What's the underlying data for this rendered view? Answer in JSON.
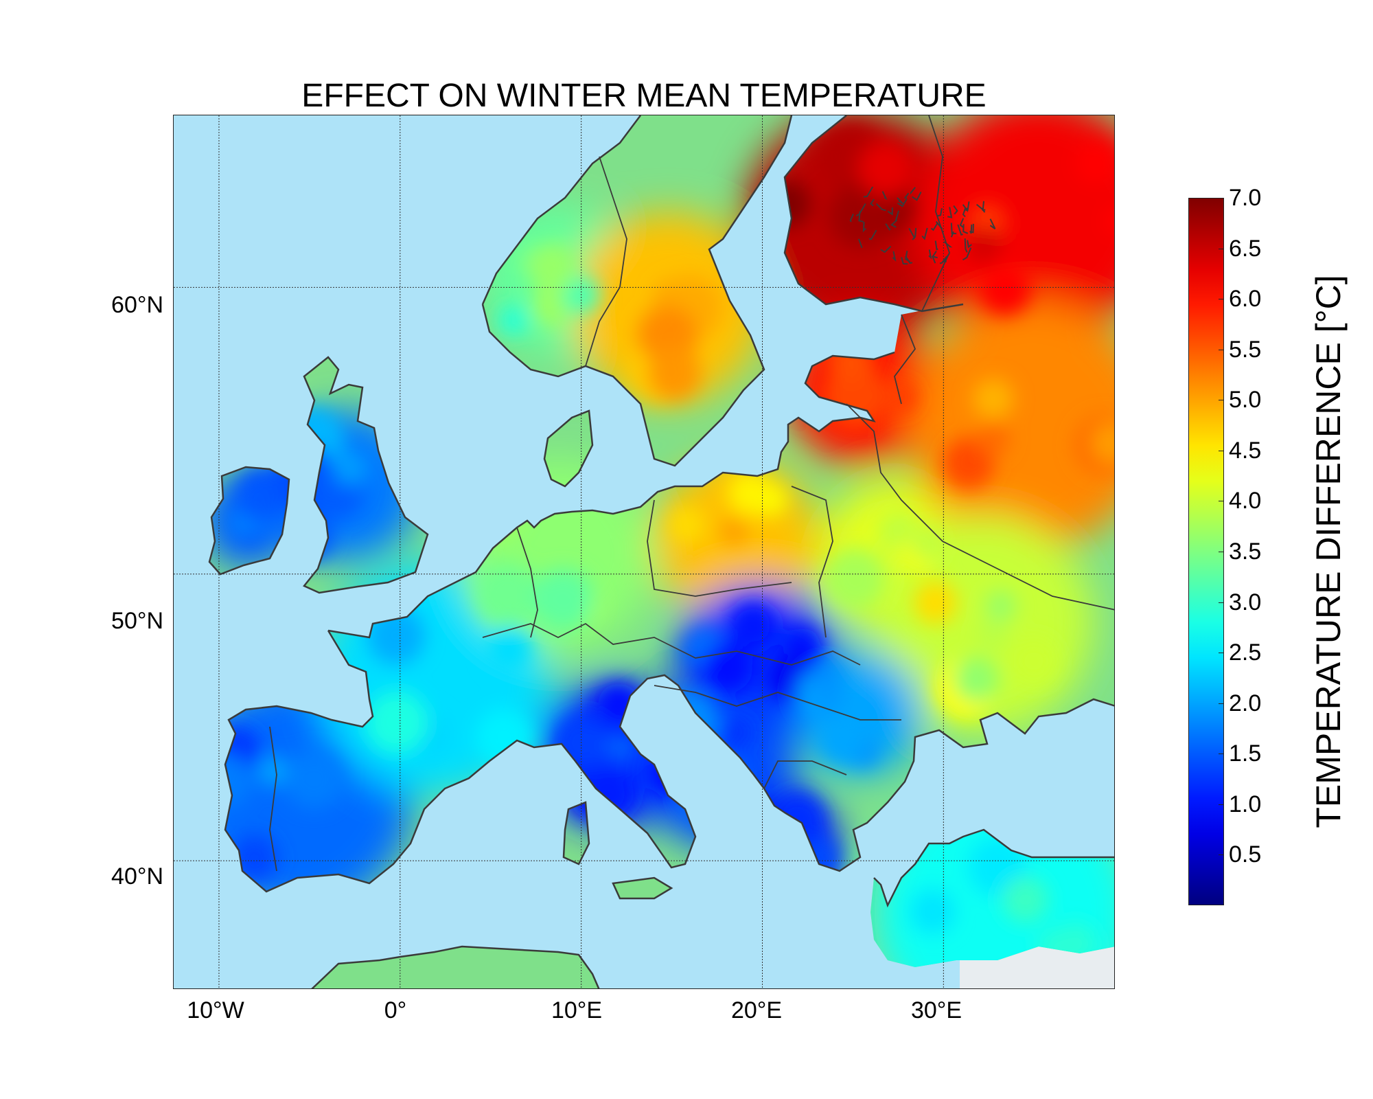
{
  "title": "EFFECT ON WINTER MEAN TEMPERATURE",
  "lat_labels": [
    "60°N",
    "50°N",
    "40°N"
  ],
  "lon_labels": [
    "10°W",
    "0°",
    "10°E",
    "20°E",
    "30°E"
  ],
  "colorbar": {
    "label": "TEMPERATURE DIFFERENCE [°C]",
    "ticks": [
      "7.0",
      "6.5",
      "6.0",
      "5.5",
      "5.0",
      "4.5",
      "4.0",
      "3.5",
      "3.0",
      "2.5",
      "2.0",
      "1.5",
      "1.0",
      "0.5"
    ],
    "range": [
      0.0,
      7.0
    ],
    "colormap": "jet"
  },
  "map": {
    "extent_lon": [
      -12.5,
      39.5
    ],
    "extent_lat": [
      35.5,
      66.0
    ],
    "sea_color": "#aee3f8",
    "nodata_color": "#e8edf0",
    "coast_color": "#3a3a3a"
  },
  "chart_data": {
    "type": "heatmap",
    "title": "EFFECT ON WINTER MEAN TEMPERATURE",
    "colorbar_label": "TEMPERATURE DIFFERENCE [°C]",
    "value_range": [
      0.0,
      7.0
    ],
    "regions": [
      {
        "name": "Ireland",
        "value": 1.5
      },
      {
        "name": "Great Britain",
        "value": 1.7
      },
      {
        "name": "Iberia",
        "value": 1.6
      },
      {
        "name": "France",
        "value": 2.4
      },
      {
        "name": "Italy",
        "value": 1.1
      },
      {
        "name": "Germany",
        "value": 3.6
      },
      {
        "name": "Poland",
        "value": 4.8
      },
      {
        "name": "Norway",
        "value": 3.3
      },
      {
        "name": "Sweden",
        "value": 4.8
      },
      {
        "name": "Finland",
        "value": 6.6
      },
      {
        "name": "NW Russia",
        "value": 6.2
      },
      {
        "name": "Baltics",
        "value": 6.0
      },
      {
        "name": "Belarus",
        "value": 4.2
      },
      {
        "name": "Western Russia",
        "value": 5.2
      },
      {
        "name": "Ukraine",
        "value": 4.0
      },
      {
        "name": "Carpathian Basin",
        "value": 1.2
      },
      {
        "name": "Balkans",
        "value": 1.4
      },
      {
        "name": "Greece",
        "value": 1.0
      },
      {
        "name": "Romania",
        "value": 2.0
      },
      {
        "name": "Turkey",
        "value": 2.7
      }
    ]
  }
}
